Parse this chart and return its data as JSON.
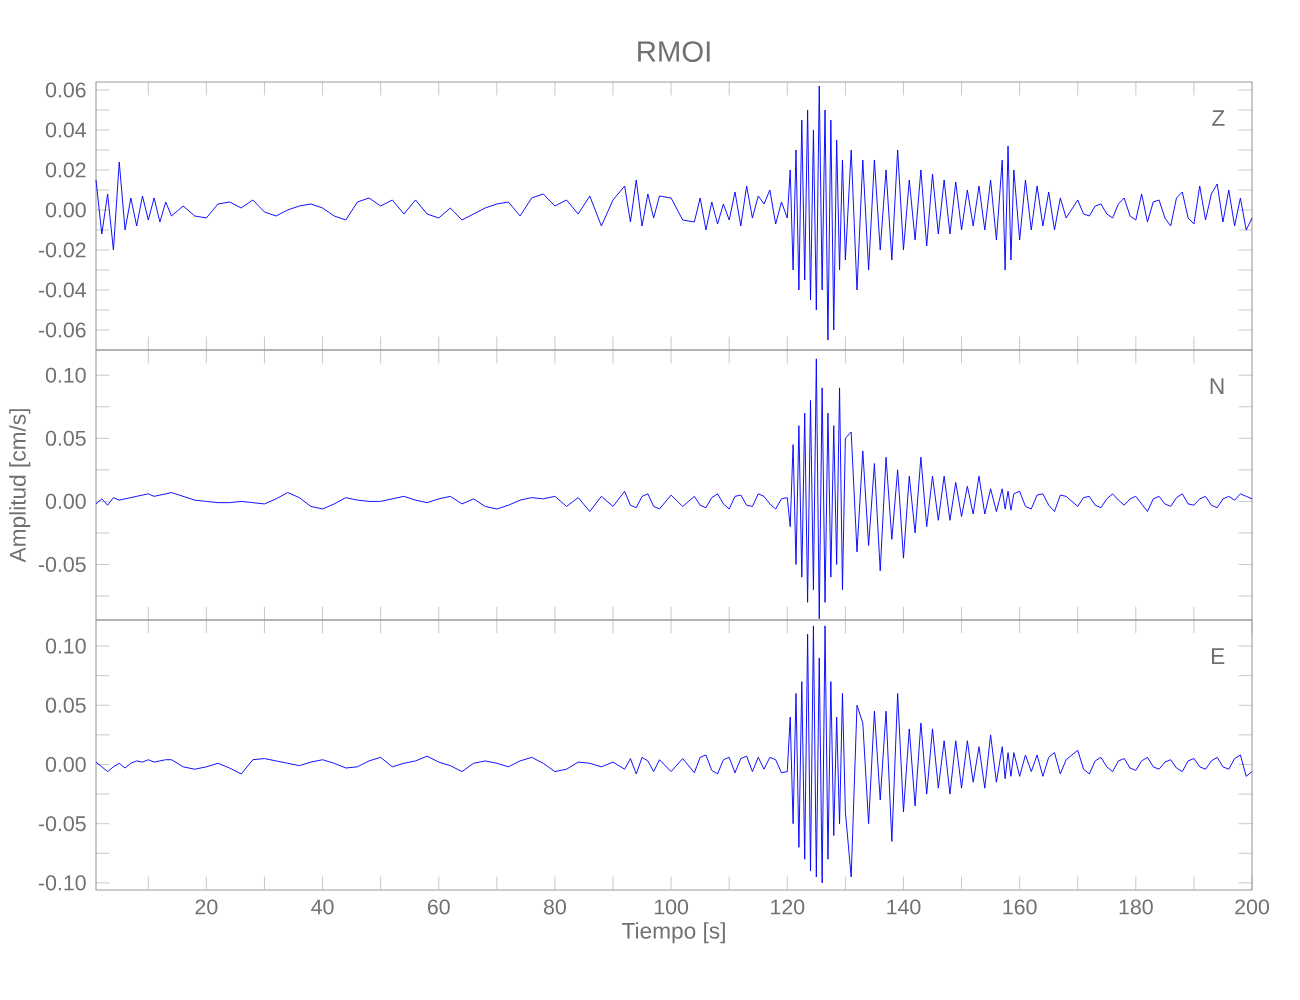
{
  "chart_data": [
    {
      "type": "line",
      "title": "RMOI",
      "annotations": [
        "Z"
      ],
      "color": "#0000ff",
      "tick_labels": "y",
      "xlim": [
        1,
        200
      ],
      "ylim": [
        -0.07,
        0.064
      ],
      "xticks": [
        {
          "value": 10,
          "label": null
        },
        {
          "value": 20,
          "label": null
        },
        {
          "value": 30,
          "label": null
        },
        {
          "value": 40,
          "label": null
        },
        {
          "value": 50,
          "label": null
        },
        {
          "value": 60,
          "label": null
        },
        {
          "value": 70,
          "label": null
        },
        {
          "value": 80,
          "label": null
        },
        {
          "value": 90,
          "label": null
        },
        {
          "value": 100,
          "label": null
        },
        {
          "value": 110,
          "label": null
        },
        {
          "value": 120,
          "label": null
        },
        {
          "value": 130,
          "label": null
        },
        {
          "value": 140,
          "label": null
        },
        {
          "value": 150,
          "label": null
        },
        {
          "value": 160,
          "label": null
        },
        {
          "value": 170,
          "label": null
        },
        {
          "value": 180,
          "label": null
        },
        {
          "value": 190,
          "label": null
        }
      ],
      "yticks": [
        -0.06,
        {
          "value": -0.05,
          "label": null
        },
        -0.04,
        {
          "value": -0.03,
          "label": null
        },
        -0.02,
        {
          "value": -0.01,
          "label": null
        },
        {
          "value": 0,
          "label": "0.00"
        },
        {
          "value": 0.01,
          "label": null
        },
        0.02,
        {
          "value": 0.03,
          "label": null
        },
        0.04,
        {
          "value": 0.05,
          "label": null
        },
        0.06
      ],
      "x": [
        1,
        2,
        3,
        4,
        5,
        6,
        7,
        8,
        9,
        10,
        11,
        12,
        13,
        14,
        16,
        18,
        20,
        22,
        24,
        26,
        28,
        30,
        32,
        34,
        36,
        38,
        40,
        42,
        44,
        46,
        48,
        50,
        52,
        54,
        56,
        58,
        60,
        62,
        64,
        66,
        68,
        70,
        72,
        74,
        76,
        78,
        80,
        82,
        84,
        86,
        88,
        90,
        92,
        93,
        94,
        95,
        96,
        97,
        98,
        100,
        102,
        104,
        105,
        106,
        107,
        108,
        109,
        110,
        111,
        112,
        113,
        114,
        115,
        116,
        117,
        118,
        119,
        120,
        120.5,
        121,
        121.5,
        122,
        122.5,
        123,
        123.5,
        124,
        124.5,
        125,
        125.5,
        126,
        126.5,
        127,
        127.5,
        128,
        128.5,
        129,
        129.5,
        130,
        131,
        132,
        133,
        134,
        135,
        136,
        137,
        138,
        139,
        140,
        141,
        142,
        143,
        144,
        145,
        146,
        147,
        148,
        149,
        150,
        151,
        152,
        153,
        154,
        155,
        156,
        157,
        157.5,
        158,
        158.5,
        159,
        160,
        161,
        162,
        163,
        164,
        165,
        166,
        167,
        168,
        170,
        171,
        172,
        173,
        174,
        175,
        176,
        177,
        178,
        179,
        180,
        181,
        182,
        183,
        184,
        185,
        186,
        187,
        188,
        189,
        190,
        191,
        192,
        193,
        194,
        195,
        196,
        197,
        198,
        199,
        200
      ],
      "values": [
        0.015,
        -0.012,
        0.008,
        -0.02,
        0.024,
        -0.01,
        0.006,
        -0.008,
        0.007,
        -0.005,
        0.006,
        -0.006,
        0.004,
        -0.003,
        0.002,
        -0.003,
        -0.004,
        0.003,
        0.004,
        0.001,
        0.005,
        -0.001,
        -0.003,
        0.0,
        0.002,
        0.003,
        0.001,
        -0.003,
        -0.005,
        0.004,
        0.006,
        0.002,
        0.005,
        -0.002,
        0.005,
        -0.002,
        -0.004,
        0.001,
        -0.005,
        -0.002,
        0.001,
        0.003,
        0.004,
        -0.003,
        0.006,
        0.008,
        0.002,
        0.005,
        -0.002,
        0.007,
        -0.008,
        0.005,
        0.012,
        -0.006,
        0.015,
        -0.008,
        0.008,
        -0.004,
        0.007,
        0.006,
        -0.005,
        -0.006,
        0.006,
        -0.01,
        0.004,
        -0.007,
        0.003,
        -0.005,
        0.009,
        -0.008,
        0.012,
        -0.004,
        0.007,
        0.003,
        0.01,
        -0.007,
        0.004,
        -0.004,
        0.02,
        -0.03,
        0.03,
        -0.04,
        0.045,
        -0.035,
        0.05,
        -0.045,
        0.04,
        -0.05,
        0.062,
        -0.04,
        0.05,
        -0.065,
        0.045,
        -0.06,
        0.035,
        -0.03,
        0.025,
        -0.025,
        0.03,
        -0.04,
        0.025,
        -0.03,
        0.025,
        -0.02,
        0.02,
        -0.025,
        0.03,
        -0.02,
        0.015,
        -0.015,
        0.02,
        -0.018,
        0.018,
        -0.012,
        0.015,
        -0.012,
        0.014,
        -0.01,
        0.01,
        -0.008,
        0.012,
        -0.01,
        0.015,
        -0.015,
        0.025,
        -0.03,
        0.032,
        -0.025,
        0.02,
        -0.015,
        0.015,
        -0.01,
        0.012,
        -0.008,
        0.009,
        -0.01,
        0.006,
        -0.004,
        0.005,
        -0.002,
        -0.003,
        0.002,
        0.003,
        -0.002,
        -0.004,
        0.003,
        0.006,
        -0.003,
        -0.005,
        0.008,
        -0.006,
        0.004,
        0.005,
        -0.004,
        -0.008,
        0.006,
        0.009,
        -0.004,
        -0.007,
        0.012,
        -0.005,
        0.008,
        0.013,
        -0.006,
        0.01,
        -0.008,
        0.006,
        -0.01,
        -0.004
      ]
    },
    {
      "type": "line",
      "ylabel": "Amplitud [cm/s]",
      "annotations": [
        "N"
      ],
      "color": "#0000ff",
      "tick_labels": "y",
      "xlim": [
        1,
        200
      ],
      "ylim": [
        -0.094,
        0.12
      ],
      "xticks": [
        {
          "value": 10,
          "label": null
        },
        {
          "value": 20,
          "label": null
        },
        {
          "value": 30,
          "label": null
        },
        {
          "value": 40,
          "label": null
        },
        {
          "value": 50,
          "label": null
        },
        {
          "value": 60,
          "label": null
        },
        {
          "value": 70,
          "label": null
        },
        {
          "value": 80,
          "label": null
        },
        {
          "value": 90,
          "label": null
        },
        {
          "value": 100,
          "label": null
        },
        {
          "value": 110,
          "label": null
        },
        {
          "value": 120,
          "label": null
        },
        {
          "value": 130,
          "label": null
        },
        {
          "value": 140,
          "label": null
        },
        {
          "value": 150,
          "label": null
        },
        {
          "value": 160,
          "label": null
        },
        {
          "value": 170,
          "label": null
        },
        {
          "value": 180,
          "label": null
        },
        {
          "value": 190,
          "label": null
        }
      ],
      "yticks": [
        {
          "value": -0.075,
          "label": null
        },
        -0.05,
        {
          "value": -0.025,
          "label": null
        },
        {
          "value": 0,
          "label": "0.00"
        },
        {
          "value": 0.025,
          "label": null
        },
        0.05,
        {
          "value": 0.075,
          "label": null
        },
        {
          "value": 0.1,
          "label": "0.10"
        }
      ],
      "x": [
        1,
        2,
        3,
        4,
        5,
        6,
        7,
        8,
        9,
        10,
        11,
        12,
        13,
        14,
        16,
        18,
        20,
        22,
        24,
        26,
        28,
        30,
        32,
        34,
        36,
        38,
        40,
        42,
        44,
        46,
        48,
        50,
        52,
        54,
        56,
        58,
        60,
        62,
        64,
        66,
        68,
        70,
        72,
        74,
        76,
        78,
        80,
        82,
        84,
        86,
        88,
        90,
        92,
        93,
        94,
        95,
        96,
        97,
        98,
        100,
        102,
        104,
        105,
        106,
        107,
        108,
        109,
        110,
        111,
        112,
        113,
        114,
        115,
        116,
        117,
        118,
        119,
        120,
        120.5,
        121,
        121.5,
        122,
        122.5,
        123,
        123.5,
        124,
        124.5,
        125,
        125.5,
        126,
        126.5,
        127,
        127.5,
        128,
        128.5,
        129,
        129.5,
        130,
        131,
        132,
        133,
        134,
        135,
        136,
        137,
        138,
        139,
        140,
        141,
        142,
        143,
        144,
        145,
        146,
        147,
        148,
        149,
        150,
        151,
        152,
        153,
        154,
        155,
        156,
        157,
        157.5,
        158,
        158.5,
        159,
        160,
        161,
        162,
        163,
        164,
        165,
        166,
        167,
        168,
        170,
        171,
        172,
        173,
        174,
        175,
        176,
        177,
        178,
        179,
        180,
        181,
        182,
        183,
        184,
        185,
        186,
        187,
        188,
        189,
        190,
        191,
        192,
        193,
        194,
        195,
        196,
        197,
        198,
        199,
        200
      ],
      "values": [
        -0.002,
        0.002,
        -0.003,
        0.003,
        0.001,
        0.002,
        0.003,
        0.004,
        0.005,
        0.006,
        0.004,
        0.005,
        0.006,
        0.007,
        0.004,
        0.001,
        0.0,
        -0.001,
        -0.001,
        0.0,
        -0.001,
        -0.002,
        0.002,
        0.007,
        0.003,
        -0.004,
        -0.006,
        -0.002,
        0.003,
        0.001,
        0.0,
        0.0,
        0.002,
        0.004,
        0.001,
        -0.001,
        0.002,
        0.004,
        -0.002,
        0.002,
        -0.004,
        -0.006,
        -0.003,
        0.001,
        0.003,
        0.002,
        0.004,
        -0.004,
        0.003,
        -0.008,
        0.004,
        -0.004,
        0.008,
        -0.003,
        -0.005,
        0.004,
        0.006,
        -0.004,
        -0.006,
        0.005,
        -0.004,
        0.004,
        -0.003,
        -0.005,
        0.003,
        0.006,
        -0.002,
        -0.006,
        0.004,
        0.005,
        -0.003,
        -0.004,
        0.006,
        0.004,
        -0.002,
        -0.006,
        0.002,
        0.003,
        -0.02,
        0.045,
        -0.05,
        0.06,
        -0.06,
        0.07,
        -0.08,
        0.08,
        -0.07,
        0.113,
        -0.093,
        0.09,
        -0.08,
        0.07,
        -0.06,
        0.06,
        -0.05,
        0.09,
        -0.07,
        0.05,
        0.055,
        -0.04,
        0.04,
        -0.035,
        0.03,
        -0.055,
        0.035,
        -0.03,
        0.025,
        -0.045,
        0.02,
        -0.025,
        0.035,
        -0.02,
        0.02,
        -0.015,
        0.02,
        -0.015,
        0.015,
        -0.012,
        0.012,
        -0.01,
        0.02,
        -0.01,
        0.01,
        -0.008,
        0.01,
        -0.006,
        0.008,
        -0.007,
        0.006,
        0.008,
        -0.004,
        -0.006,
        0.005,
        0.006,
        -0.003,
        -0.008,
        0.005,
        0.004,
        -0.004,
        0.003,
        0.004,
        -0.003,
        -0.005,
        0.002,
        0.006,
        0.001,
        -0.003,
        0.002,
        0.004,
        -0.002,
        -0.008,
        0.002,
        0.004,
        -0.002,
        -0.004,
        0.003,
        0.006,
        -0.002,
        -0.003,
        0.002,
        0.004,
        -0.003,
        -0.005,
        0.002,
        0.004,
        0.001,
        0.006,
        0.004,
        0.002
      ]
    },
    {
      "type": "line",
      "xlabel": "Tiempo [s]",
      "annotations": [
        "E"
      ],
      "color": "#0000ff",
      "xlim": [
        1,
        200
      ],
      "ylim": [
        -0.106,
        0.122
      ],
      "xticks": [
        {
          "value": 10,
          "label": null
        },
        20,
        {
          "value": 30,
          "label": null
        },
        40,
        {
          "value": 50,
          "label": null
        },
        60,
        {
          "value": 70,
          "label": null
        },
        80,
        {
          "value": 90,
          "label": null
        },
        100,
        {
          "value": 110,
          "label": null
        },
        120,
        {
          "value": 130,
          "label": null
        },
        140,
        {
          "value": 150,
          "label": null
        },
        160,
        {
          "value": 170,
          "label": null
        },
        180,
        {
          "value": 190,
          "label": null
        },
        200
      ],
      "yticks": [
        {
          "value": -0.1,
          "label": "-0.10"
        },
        {
          "value": -0.075,
          "label": null
        },
        -0.05,
        {
          "value": -0.025,
          "label": null
        },
        {
          "value": 0,
          "label": "0.00"
        },
        {
          "value": 0.025,
          "label": null
        },
        0.05,
        {
          "value": 0.075,
          "label": null
        },
        {
          "value": 0.1,
          "label": "0.10"
        }
      ],
      "x": [
        1,
        2,
        3,
        4,
        5,
        6,
        7,
        8,
        9,
        10,
        11,
        12,
        13,
        14,
        16,
        18,
        20,
        22,
        24,
        26,
        28,
        30,
        32,
        34,
        36,
        38,
        40,
        42,
        44,
        46,
        48,
        50,
        52,
        54,
        56,
        58,
        60,
        62,
        64,
        66,
        68,
        70,
        72,
        74,
        76,
        78,
        80,
        82,
        84,
        86,
        88,
        90,
        92,
        93,
        94,
        95,
        96,
        97,
        98,
        100,
        102,
        104,
        105,
        106,
        107,
        108,
        109,
        110,
        111,
        112,
        113,
        114,
        115,
        116,
        117,
        118,
        119,
        120,
        120.5,
        121,
        121.5,
        122,
        122.5,
        123,
        123.5,
        124,
        124.5,
        125,
        125.5,
        126,
        126.5,
        127,
        127.5,
        128,
        128.5,
        129,
        129.5,
        130,
        131,
        132,
        133,
        134,
        135,
        136,
        137,
        138,
        139,
        140,
        141,
        142,
        143,
        144,
        145,
        146,
        147,
        148,
        149,
        150,
        151,
        152,
        153,
        154,
        155,
        156,
        157,
        157.5,
        158,
        158.5,
        159,
        160,
        161,
        162,
        163,
        164,
        165,
        166,
        167,
        168,
        170,
        171,
        172,
        173,
        174,
        175,
        176,
        177,
        178,
        179,
        180,
        181,
        182,
        183,
        184,
        185,
        186,
        187,
        188,
        189,
        190,
        191,
        192,
        193,
        194,
        195,
        196,
        197,
        198,
        199,
        200
      ],
      "values": [
        0.002,
        -0.002,
        -0.006,
        -0.002,
        0.001,
        -0.003,
        0.001,
        0.003,
        0.002,
        0.004,
        0.002,
        0.003,
        0.004,
        0.004,
        -0.002,
        -0.004,
        -0.002,
        0.001,
        -0.003,
        -0.008,
        0.004,
        0.005,
        0.003,
        0.001,
        -0.001,
        0.002,
        0.004,
        0.001,
        -0.003,
        -0.002,
        0.003,
        0.006,
        -0.002,
        0.001,
        0.003,
        0.007,
        0.002,
        -0.001,
        -0.006,
        0.001,
        0.003,
        0.001,
        -0.002,
        0.003,
        0.006,
        0.001,
        -0.006,
        -0.004,
        0.002,
        0.001,
        -0.002,
        0.002,
        -0.004,
        0.005,
        -0.008,
        0.006,
        0.003,
        -0.006,
        0.004,
        -0.006,
        0.005,
        -0.007,
        0.006,
        0.008,
        -0.005,
        -0.008,
        0.004,
        0.006,
        -0.007,
        0.005,
        0.007,
        -0.006,
        0.006,
        -0.004,
        0.006,
        0.004,
        -0.007,
        -0.006,
        0.04,
        -0.05,
        0.06,
        -0.07,
        0.07,
        -0.08,
        0.11,
        -0.09,
        0.117,
        -0.095,
        0.09,
        -0.1,
        0.117,
        -0.08,
        0.07,
        -0.06,
        0.04,
        -0.05,
        0.06,
        -0.04,
        -0.095,
        0.05,
        0.035,
        -0.05,
        0.045,
        -0.03,
        0.045,
        -0.065,
        0.06,
        -0.04,
        0.03,
        -0.035,
        0.035,
        -0.025,
        0.03,
        -0.02,
        0.02,
        -0.025,
        0.02,
        -0.02,
        0.02,
        -0.015,
        0.015,
        -0.02,
        0.025,
        -0.015,
        0.015,
        -0.012,
        0.01,
        -0.01,
        0.01,
        -0.01,
        0.008,
        -0.006,
        0.008,
        -0.01,
        0.006,
        0.01,
        -0.008,
        0.004,
        0.012,
        -0.004,
        -0.008,
        0.003,
        0.006,
        -0.002,
        -0.006,
        0.003,
        0.005,
        -0.003,
        -0.005,
        0.003,
        0.006,
        -0.002,
        -0.004,
        0.002,
        0.004,
        -0.003,
        -0.006,
        0.003,
        0.005,
        -0.002,
        -0.004,
        0.003,
        0.006,
        -0.002,
        -0.004,
        0.005,
        0.008,
        -0.01,
        -0.006
      ]
    }
  ]
}
